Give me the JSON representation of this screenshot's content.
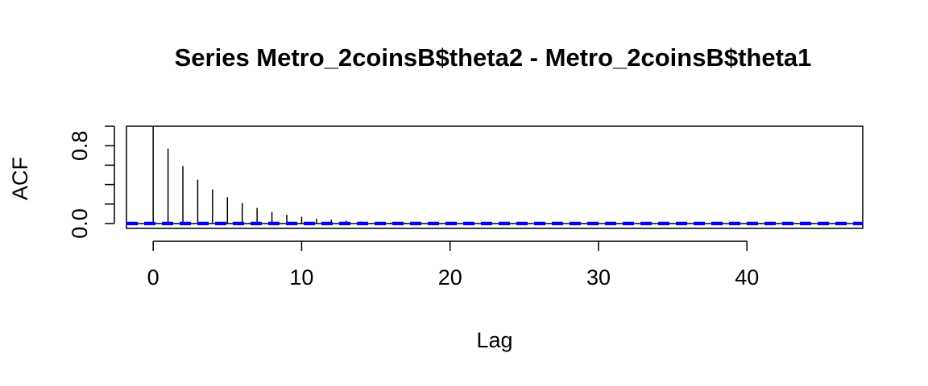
{
  "chart_data": {
    "type": "bar",
    "subtype": "acf",
    "title": "Series  Metro_2coinsB$theta2 - Metro_2coinsB$theta1",
    "xlabel": "Lag",
    "ylabel": "ACF",
    "xlim": [
      -1.8,
      47.8
    ],
    "ylim": [
      -0.05,
      1.0
    ],
    "x_ticks": [
      0,
      10,
      20,
      30,
      40
    ],
    "x_tick_labels": [
      "0",
      "10",
      "20",
      "30",
      "40"
    ],
    "y_ticks": [
      0.0,
      0.2,
      0.4,
      0.6,
      0.8,
      1.0
    ],
    "y_tick_labels": [
      "0.0",
      "",
      "",
      "",
      "0.8",
      ""
    ],
    "lags": [
      0,
      1,
      2,
      3,
      4,
      5,
      6,
      7,
      8,
      9,
      10,
      11,
      12,
      13,
      14,
      15,
      16,
      17,
      18,
      19,
      20,
      21,
      22,
      23,
      24,
      25,
      26,
      27,
      28,
      29,
      30,
      31,
      32,
      33,
      34,
      35,
      36,
      37,
      38,
      39,
      40,
      41,
      42,
      43,
      44,
      45,
      46,
      47
    ],
    "values": [
      1.0,
      0.77,
      0.59,
      0.45,
      0.35,
      0.27,
      0.21,
      0.16,
      0.12,
      0.09,
      0.07,
      0.05,
      0.04,
      0.03,
      0.02,
      0.015,
      0.01,
      0.008,
      0.006,
      0.005,
      0.004,
      0.003,
      0.003,
      0.002,
      0.002,
      0.002,
      0.001,
      0.001,
      0.001,
      0.001,
      0.001,
      0.001,
      0.001,
      0.002,
      0.002,
      0.002,
      0.001,
      0.001,
      0.001,
      0.001,
      0.001,
      0.001,
      0.001,
      0.001,
      0.001,
      0.001,
      0.001,
      0.001
    ],
    "confidence_bound": 0.006,
    "confidence_color": "#0000ff",
    "grid": false,
    "legend": "none"
  }
}
